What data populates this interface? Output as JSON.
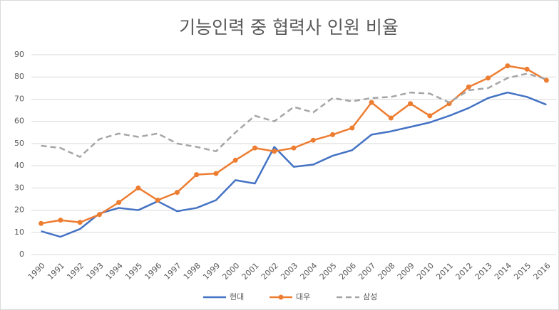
{
  "chart_data": {
    "type": "line",
    "title": "기능인력 중 협력사 인원 비율",
    "categories": [
      "1990",
      "1991",
      "1992",
      "1993",
      "1994",
      "1995",
      "1996",
      "1997",
      "1998",
      "1999",
      "2000",
      "2001",
      "2002",
      "2003",
      "2004",
      "2005",
      "2006",
      "2007",
      "2008",
      "2009",
      "2010",
      "2011",
      "2012",
      "2013",
      "2014",
      "2015",
      "2016"
    ],
    "series": [
      {
        "name": "현대",
        "color": "#4472c4",
        "values": [
          10.5,
          8,
          11.5,
          18.5,
          21,
          20,
          24,
          19.5,
          21,
          24.5,
          33.5,
          32,
          48.5,
          39.5,
          40.5,
          44.5,
          47,
          54,
          55.5,
          57.5,
          59.5,
          62.5,
          66,
          70.5,
          73,
          71,
          67.5
        ]
      },
      {
        "name": "대우",
        "color": "#ed7d31",
        "marker": true,
        "values": [
          14,
          15.5,
          14.5,
          18,
          23.5,
          30,
          24.5,
          28,
          36,
          36.5,
          42.5,
          48,
          46.5,
          48,
          51.5,
          54,
          57,
          68.5,
          61.5,
          68,
          62.5,
          68,
          75.5,
          79.5,
          85,
          83.5,
          78.5
        ]
      },
      {
        "name": "삼성",
        "color": "#a5a5a5",
        "dashed": true,
        "values": [
          49,
          48,
          44,
          52,
          54.5,
          53,
          54.5,
          50,
          48.5,
          46.5,
          55,
          62.5,
          60,
          66.5,
          64,
          70.5,
          69,
          70.5,
          71,
          73,
          72.5,
          68.5,
          74,
          75,
          79.5,
          81.5,
          79
        ]
      }
    ],
    "ylim": [
      0,
      90
    ],
    "yticks": [
      0,
      10,
      20,
      30,
      40,
      50,
      60,
      70,
      80,
      90
    ],
    "grid": true,
    "legend": "bottom"
  }
}
